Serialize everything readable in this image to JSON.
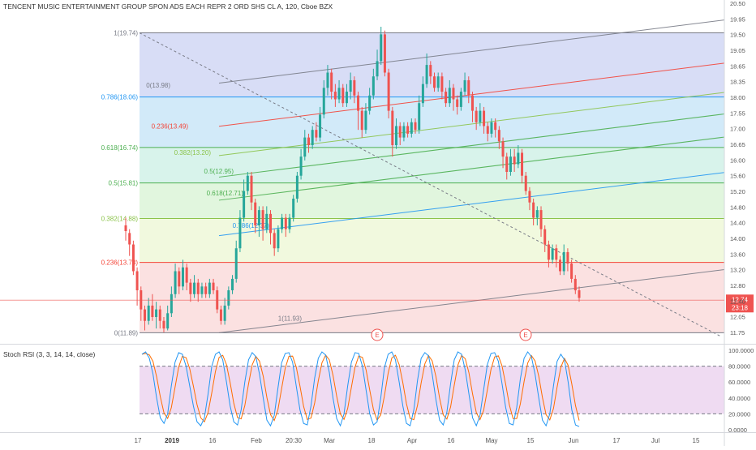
{
  "header": {
    "title": "TENCENT MUSIC ENTERTAINMENT GROUP SPON ADS EACH REPR 2 ORD SHS CL A, 120, Cboe BZX"
  },
  "chart_data": {
    "type": "candlestick",
    "price_axis": {
      "ylim": [
        11.6,
        20.6
      ],
      "ticks": [
        "20.50",
        "19.95",
        "19.50",
        "19.05",
        "18.65",
        "18.35",
        "18.00",
        "17.55",
        "17.00",
        "16.65",
        "16.00",
        "15.60",
        "15.20",
        "14.80",
        "14.40",
        "14.00",
        "13.60",
        "13.20",
        "12.80",
        "12.40",
        "12.05",
        "11.75"
      ]
    },
    "time_axis": {
      "labels": [
        "17",
        "2019",
        "16",
        "Feb",
        "20:30",
        "Mar",
        "18",
        "Apr",
        "16",
        "May",
        "15",
        "Jun",
        "17",
        "Jul",
        "15"
      ]
    },
    "last_price": {
      "value": "12.74",
      "countdown": "23:18",
      "color": "#ef5350"
    },
    "fib_levels_a": [
      {
        "label": "1(19.74)",
        "price": 19.74,
        "color": "#787b86"
      },
      {
        "label": "0.786(18.06)",
        "price": 18.06,
        "color": "#2196f3"
      },
      {
        "label": "0.618(16.74)",
        "price": 16.74,
        "color": "#4caf50"
      },
      {
        "label": "0.5(15.81)",
        "price": 15.81,
        "color": "#4caf50"
      },
      {
        "label": "0.382(14.88)",
        "price": 14.88,
        "color": "#8bc34a"
      },
      {
        "label": "0.236(13.73)",
        "price": 13.73,
        "color": "#f44336"
      },
      {
        "label": "0(11.89)",
        "price": 11.89,
        "color": "#787b86"
      }
    ],
    "fib_levels_b": [
      {
        "label": "1(11.93)"
      },
      {
        "label": "0.786(12.37)"
      },
      {
        "label": "0.618(12.71)"
      },
      {
        "label": "0.5(12.95)"
      },
      {
        "label": "0.382(13.20)"
      },
      {
        "label": "0.236(13.49)"
      },
      {
        "label": "0(13.98)"
      }
    ],
    "earnings_markers": [
      "E",
      "E"
    ],
    "candles": [
      [
        14.7,
        14.55,
        14.9,
        14.3
      ],
      [
        14.5,
        14.2,
        14.6,
        13.9
      ],
      [
        14.2,
        13.5,
        14.3,
        13.4
      ],
      [
        13.5,
        13.0,
        13.6,
        12.6
      ],
      [
        13.0,
        12.5,
        13.1,
        12.2
      ],
      [
        12.5,
        12.2,
        12.6,
        11.95
      ],
      [
        12.2,
        12.6,
        12.8,
        12.1
      ],
      [
        12.6,
        12.3,
        12.9,
        12.2
      ],
      [
        12.3,
        12.5,
        12.7,
        12.0
      ],
      [
        12.5,
        12.2,
        12.6,
        12.0
      ],
      [
        12.2,
        12.0,
        12.3,
        11.9
      ],
      [
        12.0,
        12.4,
        12.6,
        11.95
      ],
      [
        12.4,
        12.9,
        13.1,
        12.3
      ],
      [
        12.9,
        13.5,
        13.7,
        12.8
      ],
      [
        13.5,
        13.1,
        13.6,
        12.9
      ],
      [
        13.1,
        13.6,
        13.8,
        13.0
      ],
      [
        13.6,
        13.2,
        13.7,
        13.0
      ],
      [
        13.2,
        12.9,
        13.3,
        12.7
      ],
      [
        12.9,
        13.2,
        13.4,
        12.8
      ],
      [
        13.2,
        12.9,
        13.3,
        12.7
      ],
      [
        12.9,
        13.1,
        13.2,
        12.8
      ],
      [
        13.1,
        12.9,
        13.2,
        12.8
      ],
      [
        12.9,
        13.2,
        13.3,
        12.8
      ],
      [
        13.2,
        13.0,
        13.3,
        12.9
      ],
      [
        13.0,
        12.5,
        13.1,
        12.4
      ],
      [
        12.5,
        12.2,
        12.6,
        12.1
      ],
      [
        12.2,
        12.6,
        12.8,
        12.1
      ],
      [
        12.6,
        13.0,
        13.1,
        12.5
      ],
      [
        13.0,
        13.3,
        13.4,
        12.9
      ],
      [
        13.3,
        14.1,
        14.3,
        13.2
      ],
      [
        14.1,
        14.9,
        15.1,
        14.0
      ],
      [
        14.9,
        15.6,
        15.9,
        14.8
      ],
      [
        15.6,
        16.0,
        16.1,
        15.5
      ],
      [
        16.0,
        15.3,
        16.1,
        15.1
      ],
      [
        15.3,
        14.7,
        15.4,
        14.5
      ],
      [
        14.7,
        15.1,
        15.2,
        14.4
      ],
      [
        15.1,
        14.6,
        15.2,
        14.3
      ],
      [
        14.6,
        15.0,
        15.2,
        14.5
      ],
      [
        15.0,
        14.5,
        15.1,
        14.2
      ],
      [
        14.5,
        14.1,
        14.6,
        13.9
      ],
      [
        14.1,
        14.6,
        14.7,
        14.0
      ],
      [
        14.6,
        14.9,
        15.0,
        14.5
      ],
      [
        14.9,
        14.6,
        15.0,
        14.4
      ],
      [
        14.6,
        14.9,
        15.0,
        14.5
      ],
      [
        14.9,
        15.4,
        15.5,
        14.8
      ],
      [
        15.4,
        16.0,
        16.1,
        15.3
      ],
      [
        16.0,
        16.5,
        16.7,
        15.9
      ],
      [
        16.5,
        17.0,
        17.2,
        16.4
      ],
      [
        17.0,
        16.8,
        17.1,
        16.6
      ],
      [
        16.8,
        17.2,
        17.3,
        16.7
      ],
      [
        17.2,
        17.0,
        17.4,
        16.9
      ],
      [
        17.0,
        17.6,
        17.8,
        16.9
      ],
      [
        17.6,
        18.3,
        18.5,
        17.5
      ],
      [
        18.3,
        18.7,
        18.9,
        18.1
      ],
      [
        18.7,
        18.2,
        18.8,
        18.0
      ],
      [
        18.2,
        18.0,
        18.4,
        17.8
      ],
      [
        18.0,
        18.3,
        18.5,
        17.9
      ],
      [
        18.3,
        17.9,
        18.4,
        17.8
      ],
      [
        17.9,
        18.2,
        18.4,
        17.8
      ],
      [
        18.2,
        18.5,
        18.7,
        18.0
      ],
      [
        18.5,
        18.1,
        18.6,
        17.9
      ],
      [
        18.1,
        17.7,
        18.2,
        17.2
      ],
      [
        17.7,
        17.2,
        17.8,
        17.0
      ],
      [
        17.2,
        17.7,
        17.9,
        17.1
      ],
      [
        17.7,
        18.1,
        18.3,
        17.6
      ],
      [
        18.1,
        18.6,
        18.8,
        18.0
      ],
      [
        18.6,
        19.0,
        19.3,
        18.5
      ],
      [
        19.0,
        19.7,
        19.9,
        18.9
      ],
      [
        19.7,
        18.7,
        19.8,
        18.6
      ],
      [
        18.7,
        17.7,
        18.8,
        17.5
      ],
      [
        17.7,
        16.8,
        17.8,
        16.5
      ],
      [
        16.8,
        17.3,
        17.5,
        16.7
      ],
      [
        17.3,
        17.0,
        17.4,
        16.8
      ],
      [
        17.0,
        17.3,
        17.4,
        16.9
      ],
      [
        17.3,
        17.1,
        17.4,
        17.0
      ],
      [
        17.1,
        17.4,
        17.5,
        17.0
      ],
      [
        17.4,
        17.2,
        17.5,
        17.1
      ],
      [
        17.2,
        17.9,
        18.1,
        17.1
      ],
      [
        17.9,
        18.4,
        18.6,
        17.8
      ],
      [
        18.4,
        18.9,
        19.2,
        18.3
      ],
      [
        18.9,
        18.6,
        19.0,
        18.4
      ],
      [
        18.6,
        18.3,
        18.7,
        18.2
      ],
      [
        18.3,
        18.6,
        18.7,
        18.2
      ],
      [
        18.6,
        18.2,
        18.7,
        18.0
      ],
      [
        18.2,
        17.9,
        18.3,
        17.8
      ],
      [
        17.9,
        18.3,
        18.5,
        17.8
      ],
      [
        18.3,
        18.0,
        18.4,
        17.7
      ],
      [
        18.0,
        17.8,
        18.1,
        17.6
      ],
      [
        17.8,
        18.2,
        18.3,
        17.7
      ],
      [
        18.2,
        18.5,
        18.7,
        18.1
      ],
      [
        18.5,
        18.1,
        18.6,
        17.9
      ],
      [
        18.1,
        17.7,
        18.2,
        17.4
      ],
      [
        17.7,
        17.4,
        17.8,
        17.2
      ],
      [
        17.4,
        17.7,
        17.9,
        17.3
      ],
      [
        17.7,
        17.3,
        17.8,
        17.1
      ],
      [
        17.3,
        17.1,
        17.4,
        16.9
      ],
      [
        17.1,
        17.4,
        17.5,
        17.0
      ],
      [
        17.4,
        17.2,
        17.5,
        17.0
      ],
      [
        17.2,
        16.9,
        17.3,
        16.7
      ],
      [
        16.9,
        16.5,
        17.0,
        16.2
      ],
      [
        16.5,
        16.1,
        16.6,
        15.9
      ],
      [
        16.1,
        16.5,
        16.7,
        16.0
      ],
      [
        16.5,
        16.3,
        16.7,
        16.1
      ],
      [
        16.3,
        16.6,
        16.8,
        16.2
      ],
      [
        16.6,
        16.0,
        16.7,
        15.8
      ],
      [
        16.0,
        15.6,
        16.1,
        15.5
      ],
      [
        15.6,
        15.3,
        15.7,
        15.1
      ],
      [
        15.3,
        14.9,
        15.4,
        14.7
      ],
      [
        14.9,
        15.1,
        15.2,
        14.7
      ],
      [
        15.1,
        14.6,
        15.2,
        14.4
      ],
      [
        14.6,
        14.2,
        14.7,
        14.0
      ],
      [
        14.2,
        13.8,
        14.3,
        13.6
      ],
      [
        13.8,
        14.1,
        14.2,
        13.7
      ],
      [
        14.1,
        13.8,
        14.2,
        13.6
      ],
      [
        13.8,
        13.5,
        13.9,
        13.4
      ],
      [
        13.5,
        14.0,
        14.2,
        13.4
      ],
      [
        14.0,
        13.7,
        14.1,
        13.5
      ],
      [
        13.7,
        13.3,
        13.8,
        13.2
      ],
      [
        13.3,
        13.0,
        13.4,
        12.9
      ],
      [
        13.0,
        12.8,
        13.1,
        12.7
      ]
    ],
    "rsi": {
      "title": "Stoch RSI (3, 3, 14, 14, close)",
      "ticks": [
        "100.0000",
        "80.0000",
        "60.0000",
        "40.0000",
        "20.0000",
        "0.0000"
      ],
      "band_upper": 80,
      "band_lower": 20,
      "k": [
        95,
        98,
        90,
        70,
        40,
        15,
        8,
        20,
        55,
        85,
        97,
        95,
        80,
        55,
        30,
        10,
        5,
        15,
        45,
        80,
        95,
        98,
        88,
        60,
        30,
        10,
        6,
        25,
        60,
        88,
        97,
        92,
        70,
        40,
        12,
        5,
        18,
        52,
        84,
        96,
        97,
        85,
        55,
        25,
        8,
        6,
        30,
        65,
        90,
        98,
        94,
        72,
        40,
        14,
        5,
        20,
        55,
        85,
        97,
        96,
        80,
        50,
        20,
        6,
        10,
        40,
        78,
        95,
        98,
        88,
        60,
        30,
        8,
        5,
        25,
        62,
        90,
        97,
        93,
        70,
        38,
        12,
        6,
        22,
        58,
        88,
        98,
        95,
        75,
        45,
        15,
        5,
        18,
        50,
        82,
        96,
        97,
        86,
        58,
        28,
        8,
        6,
        28,
        64,
        90,
        98,
        92,
        70,
        40,
        12,
        5,
        20,
        55,
        86,
        95,
        88,
        60,
        25,
        6,
        4
      ],
      "colors": {
        "k": "#2196f3",
        "d": "#ff6d00",
        "band": "#e1bee7"
      }
    },
    "colors": {
      "up": "#26a69a",
      "down": "#ef5350",
      "trend": "#787b86"
    }
  }
}
